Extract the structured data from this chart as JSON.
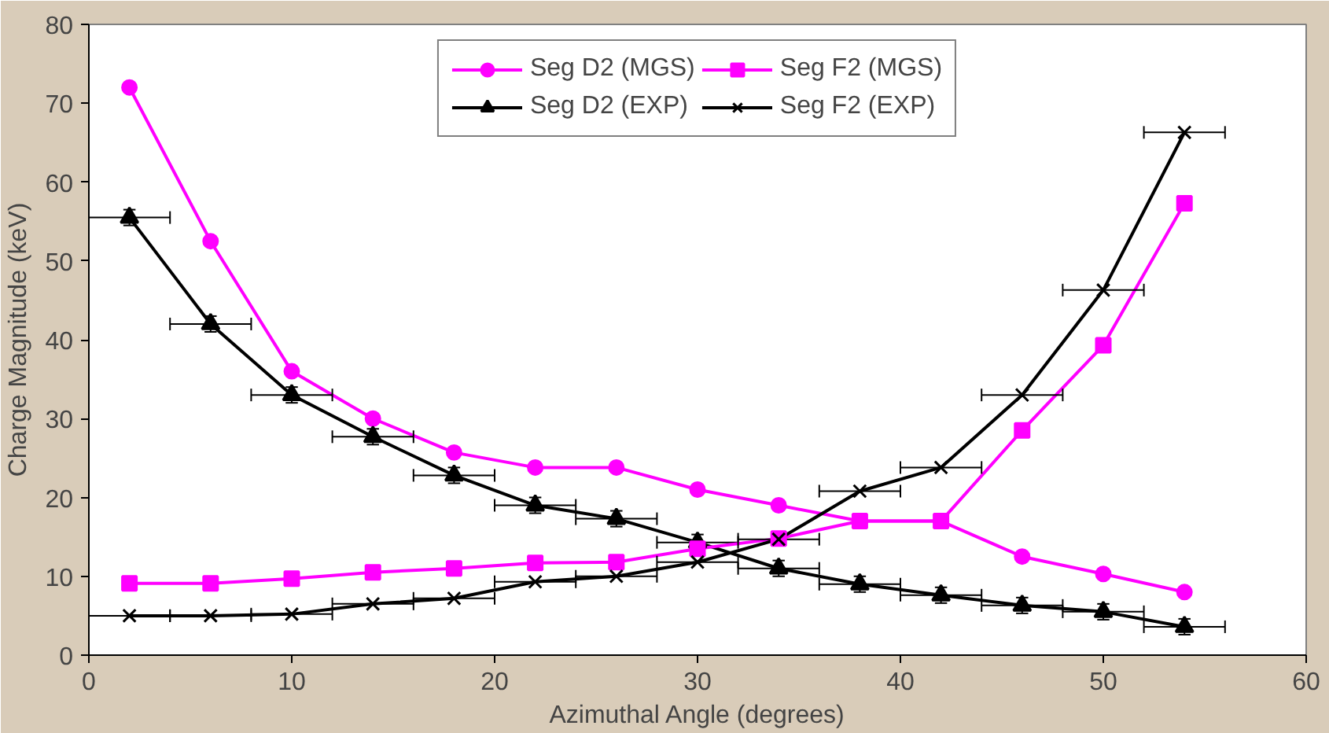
{
  "chart_data": {
    "type": "line",
    "xlabel": "Azimuthal Angle (degrees)",
    "ylabel": "Charge Magnitude (keV)",
    "x": [
      2,
      6,
      10,
      14,
      18,
      22,
      26,
      30,
      34,
      38,
      42,
      46,
      50,
      54
    ],
    "series": [
      {
        "name": "Seg D2 (MGS)",
        "color": "#ff00ff",
        "marker": "circle",
        "values": [
          72,
          52.5,
          36,
          30,
          25.7,
          23.8,
          23.8,
          21,
          19,
          17,
          17,
          12.5,
          10.3,
          8
        ]
      },
      {
        "name": "Seg D2 (EXP)",
        "color": "#000000",
        "marker": "triangle",
        "values": [
          55.5,
          42,
          33,
          27.7,
          22.8,
          19,
          17.3,
          14.3,
          11,
          9,
          7.6,
          6.3,
          5.5,
          3.6
        ],
        "errors": [
          1,
          1,
          1,
          1,
          1,
          1,
          1,
          1,
          1,
          1,
          1,
          1,
          1,
          1
        ],
        "xerrors": [
          2,
          2,
          2,
          2,
          2,
          2,
          2,
          2,
          2,
          2,
          2,
          2,
          2,
          2
        ]
      },
      {
        "name": "Seg F2 (MGS)",
        "color": "#ff00ff",
        "marker": "square",
        "values": [
          9.1,
          9.1,
          9.7,
          10.5,
          11,
          11.7,
          11.8,
          13.5,
          14.8,
          17,
          17,
          28.5,
          39.3,
          57.3
        ]
      },
      {
        "name": "Seg F2 (EXP)",
        "color": "#000000",
        "marker": "cross",
        "values": [
          5,
          5,
          5.2,
          6.5,
          7.2,
          9.3,
          10,
          11.8,
          14.7,
          20.8,
          23.8,
          33,
          46.3,
          66.3
        ],
        "xerrors": [
          2,
          2,
          2,
          2,
          2,
          2,
          2,
          2,
          2,
          2,
          2,
          2,
          2,
          2
        ]
      }
    ],
    "xlim": [
      0,
      60
    ],
    "xticks": [
      0,
      10,
      20,
      30,
      40,
      50,
      60
    ],
    "ylim": [
      0,
      80
    ],
    "yticks": [
      0,
      10,
      20,
      30,
      40,
      50,
      60,
      70,
      80
    ],
    "grid": false,
    "legend": "top"
  }
}
